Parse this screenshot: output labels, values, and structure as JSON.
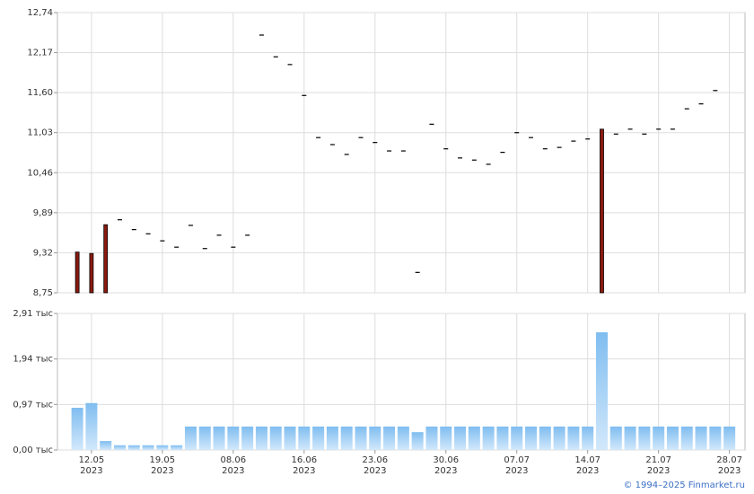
{
  "chart_data": [
    {
      "type": "candlestick",
      "ylim": [
        8.75,
        12.74
      ],
      "yticks": [
        {
          "value": 12.74,
          "label": "12,74"
        },
        {
          "value": 12.17,
          "label": "12,17"
        },
        {
          "value": 11.6,
          "label": "11,60"
        },
        {
          "value": 11.03,
          "label": "11,03"
        },
        {
          "value": 10.46,
          "label": "10,46"
        },
        {
          "value": 9.89,
          "label": "9,89"
        },
        {
          "value": 9.32,
          "label": "9,32"
        },
        {
          "value": 8.75,
          "label": "8,75"
        }
      ],
      "grid": true,
      "series": [
        {
          "name": "close",
          "color": "#000000",
          "values": [
            null,
            null,
            null,
            9.79,
            9.65,
            9.59,
            9.49,
            9.4,
            9.71,
            9.38,
            9.57,
            9.4,
            9.57,
            12.42,
            12.11,
            12.0,
            11.56,
            10.96,
            10.86,
            10.72,
            10.96,
            10.89,
            10.77,
            10.77,
            9.04,
            11.15,
            10.8,
            10.67,
            10.64,
            10.58,
            10.75,
            11.03,
            10.96,
            10.8,
            10.82,
            10.91,
            10.94,
            null,
            11.01,
            11.08,
            11.01,
            11.08,
            11.08,
            11.37,
            11.44,
            11.63,
            null
          ]
        },
        {
          "name": "high",
          "color": "#8b1a10",
          "values": [
            9.33,
            9.31,
            9.72,
            null,
            null,
            null,
            null,
            null,
            null,
            null,
            null,
            null,
            null,
            null,
            null,
            null,
            null,
            null,
            null,
            null,
            null,
            null,
            null,
            null,
            null,
            null,
            null,
            null,
            null,
            null,
            null,
            null,
            null,
            null,
            null,
            null,
            null,
            11.08,
            null,
            null,
            null,
            null,
            null,
            null,
            null,
            null,
            null
          ]
        }
      ]
    },
    {
      "type": "bar",
      "categories": [
        null,
        "12.05 2023",
        null,
        null,
        null,
        null,
        "19.05 2023",
        null,
        null,
        null,
        null,
        "08.06 2023",
        null,
        null,
        null,
        null,
        "16.06 2023",
        null,
        null,
        null,
        null,
        "23.06 2023",
        null,
        null,
        null,
        null,
        "30.06 2023",
        null,
        null,
        null,
        null,
        "07.07 2023",
        null,
        null,
        null,
        null,
        "14.07 2023",
        null,
        null,
        null,
        null,
        "21.07 2023",
        null,
        null,
        null,
        null,
        "28.07 2023"
      ],
      "values": [
        0.9,
        1.0,
        0.19,
        0.1,
        0.1,
        0.1,
        0.1,
        0.1,
        0.5,
        0.5,
        0.5,
        0.5,
        0.5,
        0.5,
        0.5,
        0.5,
        0.5,
        0.5,
        0.5,
        0.5,
        0.5,
        0.5,
        0.5,
        0.5,
        0.38,
        0.5,
        0.5,
        0.5,
        0.5,
        0.5,
        0.5,
        0.5,
        0.5,
        0.5,
        0.5,
        0.5,
        0.5,
        2.51,
        0.5,
        0.5,
        0.5,
        0.5,
        0.5,
        0.5,
        0.5,
        0.5,
        0.5
      ],
      "color": "#7fbdf0",
      "ylim": [
        0,
        2.91
      ],
      "yticks": [
        {
          "value": 2.91,
          "label": "2,91 тыс"
        },
        {
          "value": 1.94,
          "label": "1,94 тыс"
        },
        {
          "value": 0.97,
          "label": "0,97 тыс"
        },
        {
          "value": 0,
          "label": "0,00 тыс"
        }
      ],
      "grid": true,
      "source": "© 1994–2025 Finmarket.ru"
    }
  ]
}
